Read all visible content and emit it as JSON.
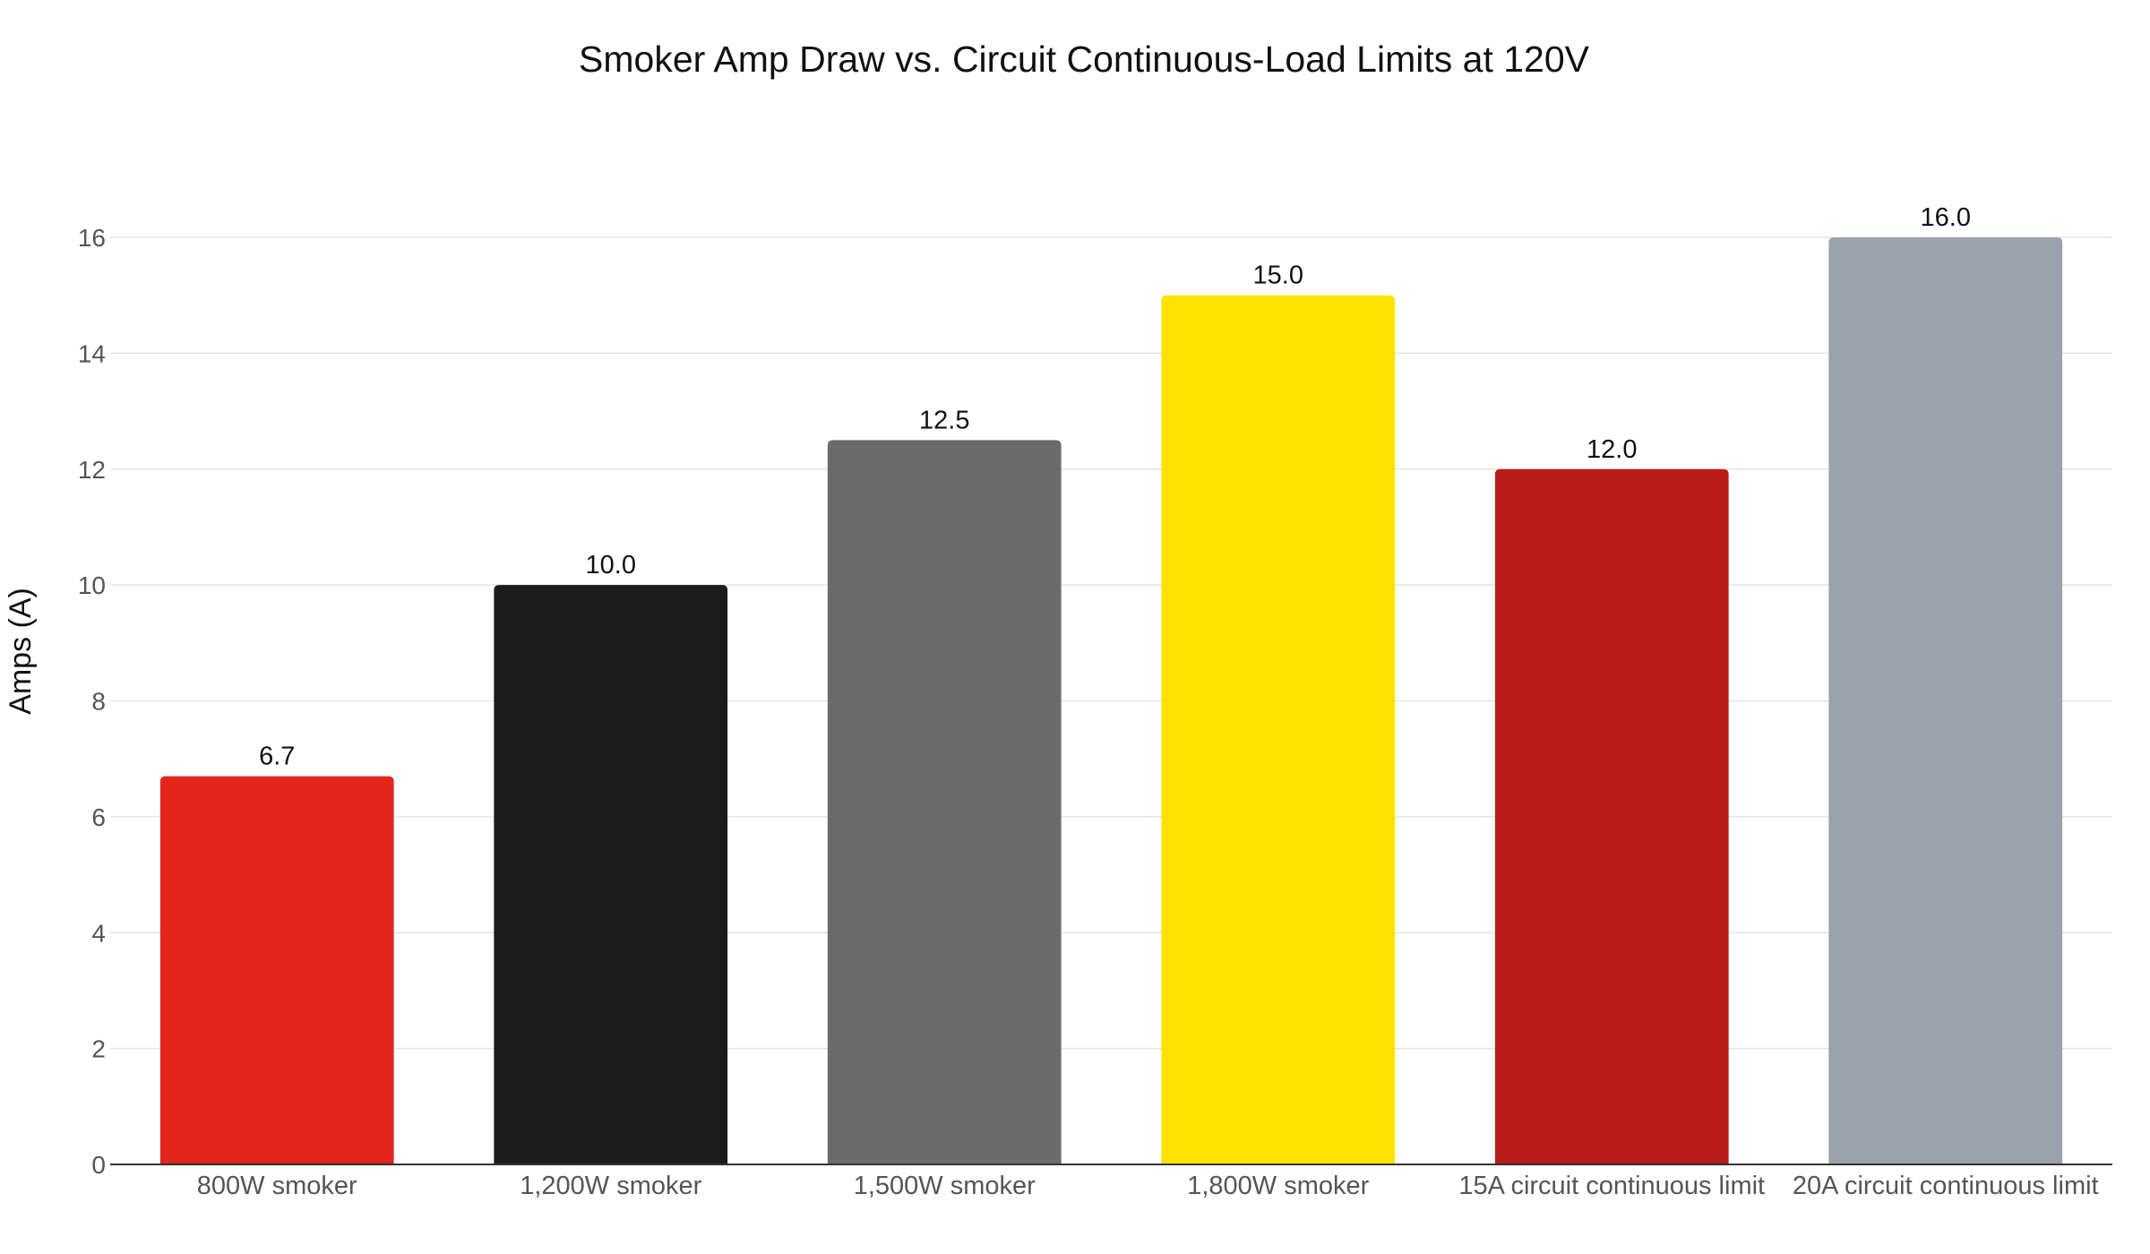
{
  "chart_data": {
    "type": "bar",
    "title": "Smoker Amp Draw vs. Circuit Continuous-Load Limits at 120V",
    "xlabel": "",
    "ylabel": "Amps (A)",
    "ylim": [
      0,
      16
    ],
    "yticks": [
      0,
      2,
      4,
      6,
      8,
      10,
      12,
      14,
      16
    ],
    "grid": true,
    "legend": "none",
    "categories": [
      "800W smoker",
      "1,200W smoker",
      "1,500W smoker",
      "1,800W smoker",
      "15A circuit continuous limit",
      "20A circuit continuous limit"
    ],
    "values": [
      6.7,
      10.0,
      12.5,
      15.0,
      12.0,
      16.0
    ],
    "value_labels": [
      "6.7",
      "10.0",
      "12.5",
      "15.0",
      "12.0",
      "16.0"
    ],
    "colors": [
      "#e2261c",
      "#1c1c1c",
      "#6b6b6b",
      "#fde200",
      "#b71c16",
      "#9ca1ac"
    ]
  }
}
